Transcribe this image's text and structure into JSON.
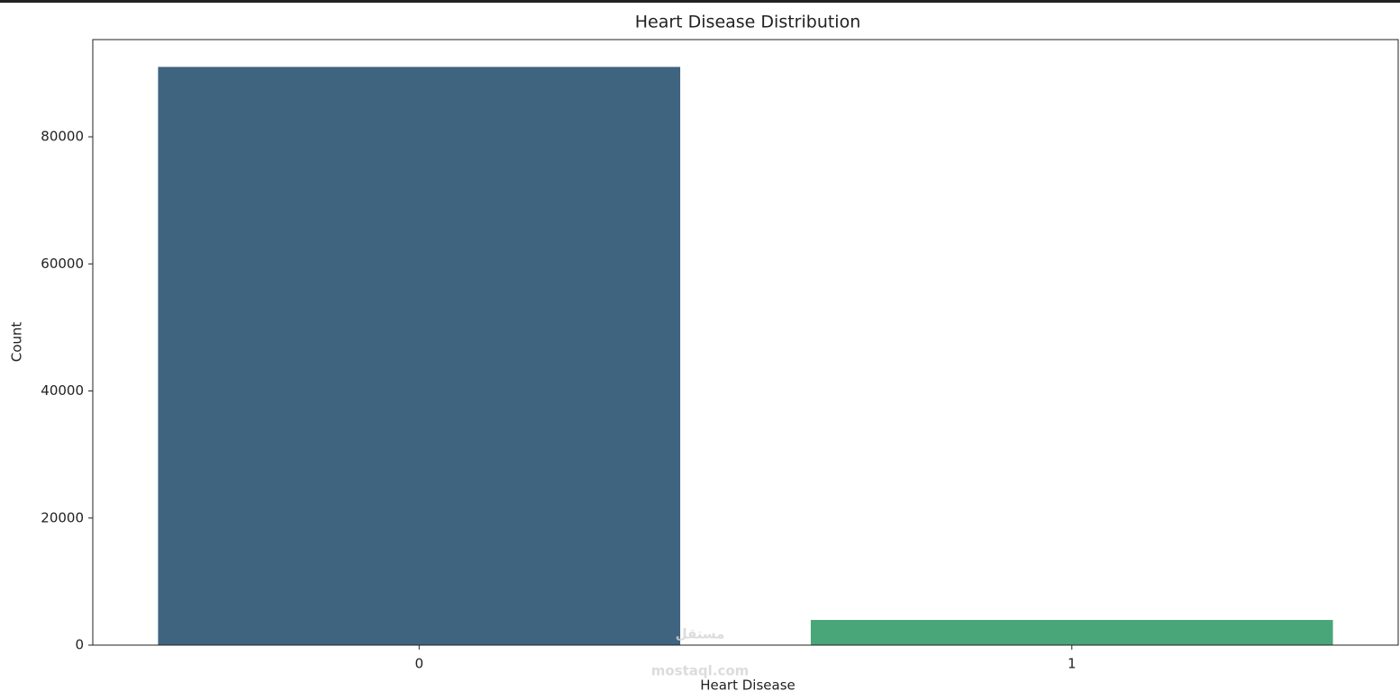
{
  "chart_data": {
    "type": "bar",
    "title": "Heart Disease Distribution",
    "x_label": "Heart Disease",
    "y_label": "Count",
    "categories": [
      "0",
      "1"
    ],
    "values": [
      91000,
      3960
    ],
    "colors": [
      "#3e6480",
      "#48a679"
    ],
    "ylim": [
      0,
      95300
    ],
    "yticks": [
      0,
      20000,
      40000,
      60000,
      80000
    ],
    "grid": false,
    "watermark": [
      "مستقل",
      "mostaql.com"
    ]
  }
}
